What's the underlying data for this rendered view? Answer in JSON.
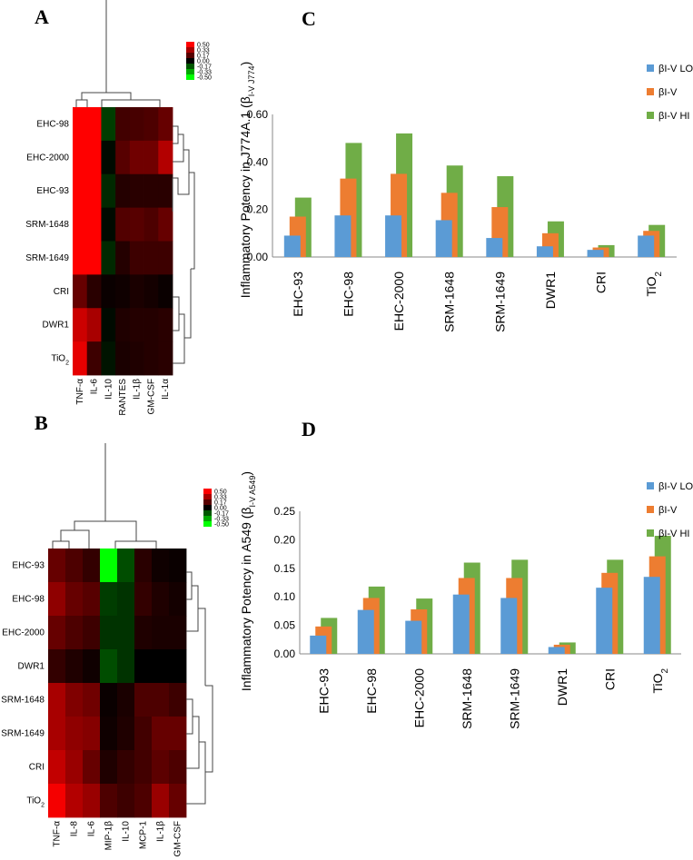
{
  "panels": {
    "a": "A",
    "b": "B",
    "c": "C",
    "d": "D"
  },
  "heatmap_scale": [
    "0.50",
    "0.33",
    "0.17",
    "0.00",
    "-0.17",
    "-0.33",
    "-0.50"
  ],
  "colors": {
    "lo": "#5B9BD5",
    "mid": "#ED7D31",
    "hi": "#70AD47"
  },
  "heatmap_a": {
    "rows": [
      "EHC-98",
      "EHC-2000",
      "EHC-93",
      "SRM-1648",
      "SRM-1649",
      "CRI",
      "DWR1",
      "TiO2"
    ],
    "cols": [
      "TNF-α",
      "IL-6",
      "IL-10",
      "RANTES",
      "IL-1β",
      "GM-CSF",
      "IL-1α"
    ],
    "values": [
      [
        0.5,
        0.5,
        -0.12,
        0.13,
        0.14,
        0.15,
        0.2
      ],
      [
        0.5,
        0.5,
        -0.02,
        0.17,
        0.22,
        0.22,
        0.35
      ],
      [
        0.5,
        0.5,
        -0.08,
        0.07,
        0.08,
        0.08,
        0.08
      ],
      [
        0.5,
        0.5,
        -0.02,
        0.16,
        0.17,
        0.15,
        0.2
      ],
      [
        0.5,
        0.5,
        -0.08,
        0.07,
        0.12,
        0.12,
        0.12
      ],
      [
        0.2,
        0.08,
        0.02,
        0.03,
        0.05,
        0.04,
        0.02
      ],
      [
        0.4,
        0.33,
        -0.02,
        0.06,
        0.07,
        0.07,
        0.08
      ],
      [
        0.45,
        0.12,
        -0.04,
        0.05,
        0.06,
        0.07,
        0.08
      ]
    ]
  },
  "heatmap_b": {
    "rows": [
      "EHC-93",
      "EHC-98",
      "EHC-2000",
      "DWR1",
      "SRM-1648",
      "SRM-1649",
      "CRI",
      "TiO2"
    ],
    "cols": [
      "TNF-α",
      "IL-8",
      "IL-6",
      "MIP-1β",
      "IL-10",
      "MCP-1",
      "IL-1β",
      "GM-CSF"
    ],
    "values": [
      [
        0.2,
        0.15,
        0.1,
        -0.5,
        -0.15,
        0.08,
        0.03,
        0.02
      ],
      [
        0.28,
        0.2,
        0.17,
        -0.12,
        -0.1,
        0.1,
        0.06,
        0.04
      ],
      [
        0.2,
        0.15,
        0.12,
        -0.1,
        -0.1,
        0.06,
        0.05,
        0.05
      ],
      [
        0.1,
        0.06,
        0.03,
        -0.15,
        -0.1,
        0.0,
        0.0,
        0.0
      ],
      [
        0.33,
        0.25,
        0.22,
        0.02,
        0.05,
        0.15,
        0.15,
        0.12
      ],
      [
        0.33,
        0.28,
        0.26,
        0.03,
        0.06,
        0.13,
        0.2,
        0.2
      ],
      [
        0.38,
        0.3,
        0.2,
        0.06,
        0.1,
        0.13,
        0.18,
        0.15
      ],
      [
        0.48,
        0.35,
        0.3,
        0.15,
        0.12,
        0.15,
        0.3,
        0.2
      ]
    ]
  },
  "chart_data": [
    {
      "type": "bar",
      "panel": "C",
      "ylabel_main": "Inflammatory Potency in J774A.1 (β",
      "ylabel_sub": "I-V J774",
      "ylabel_end": ")",
      "categories": [
        "EHC-93",
        "EHC-98",
        "EHC-2000",
        "SRM-1648",
        "SRM-1649",
        "DWR1",
        "CRI",
        "TiO2"
      ],
      "ylim": [
        0,
        0.6
      ],
      "yticks": [
        "0.00",
        "0.20",
        "0.40",
        "0.60"
      ],
      "legend": [
        "βI-V LO",
        "βI-V",
        "βI-V HI"
      ],
      "series": [
        {
          "name": "βI-V LO",
          "values": [
            0.09,
            0.175,
            0.175,
            0.155,
            0.08,
            0.045,
            0.03,
            0.09
          ]
        },
        {
          "name": "βI-V",
          "values": [
            0.17,
            0.33,
            0.35,
            0.27,
            0.21,
            0.1,
            0.04,
            0.11
          ]
        },
        {
          "name": "βI-V HI",
          "values": [
            0.25,
            0.48,
            0.52,
            0.385,
            0.34,
            0.15,
            0.05,
            0.135
          ]
        }
      ]
    },
    {
      "type": "bar",
      "panel": "D",
      "ylabel_main": "Inflammatory Potency in A549 (β",
      "ylabel_sub": "I-V A549",
      "ylabel_end": ")",
      "categories": [
        "EHC-93",
        "EHC-98",
        "EHC-2000",
        "SRM-1648",
        "SRM-1649",
        "DWR1",
        "CRI",
        "TiO2"
      ],
      "ylim": [
        0,
        0.25
      ],
      "yticks": [
        "0.00",
        "0.05",
        "0.10",
        "0.15",
        "0.20",
        "0.25"
      ],
      "legend": [
        "βI-V LO",
        "βI-V",
        "βI-V HI"
      ],
      "series": [
        {
          "name": "βI-V LO",
          "values": [
            0.032,
            0.077,
            0.058,
            0.104,
            0.098,
            0.012,
            0.116,
            0.135
          ]
        },
        {
          "name": "βI-V",
          "values": [
            0.048,
            0.098,
            0.078,
            0.133,
            0.133,
            0.016,
            0.142,
            0.171
          ]
        },
        {
          "name": "βI-V HI",
          "values": [
            0.063,
            0.118,
            0.097,
            0.16,
            0.165,
            0.02,
            0.165,
            0.207
          ]
        }
      ]
    }
  ]
}
